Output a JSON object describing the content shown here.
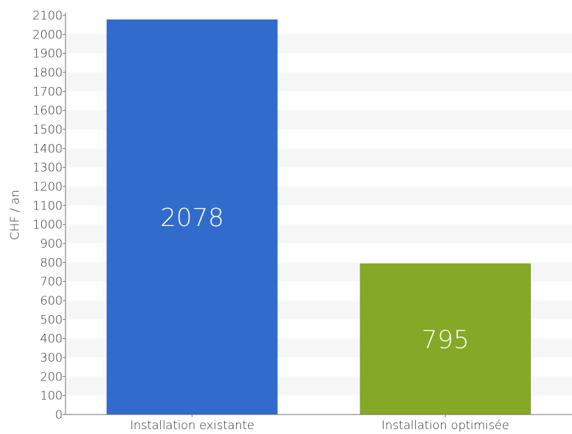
{
  "chart_data": {
    "type": "bar",
    "categories": [
      "Installation existante",
      "Installation optimisée"
    ],
    "values": [
      2078,
      795
    ],
    "data_labels": [
      "2078",
      "795"
    ],
    "bar_colors": [
      "#316bcc",
      "#85a826"
    ],
    "title": "",
    "xlabel": "",
    "ylabel": "CHF / an",
    "ylim": [
      0,
      2100
    ],
    "ytick_step": 100,
    "grid": "alternating horizontal bands",
    "band_color": "#f6f6f6",
    "legend": "none"
  }
}
